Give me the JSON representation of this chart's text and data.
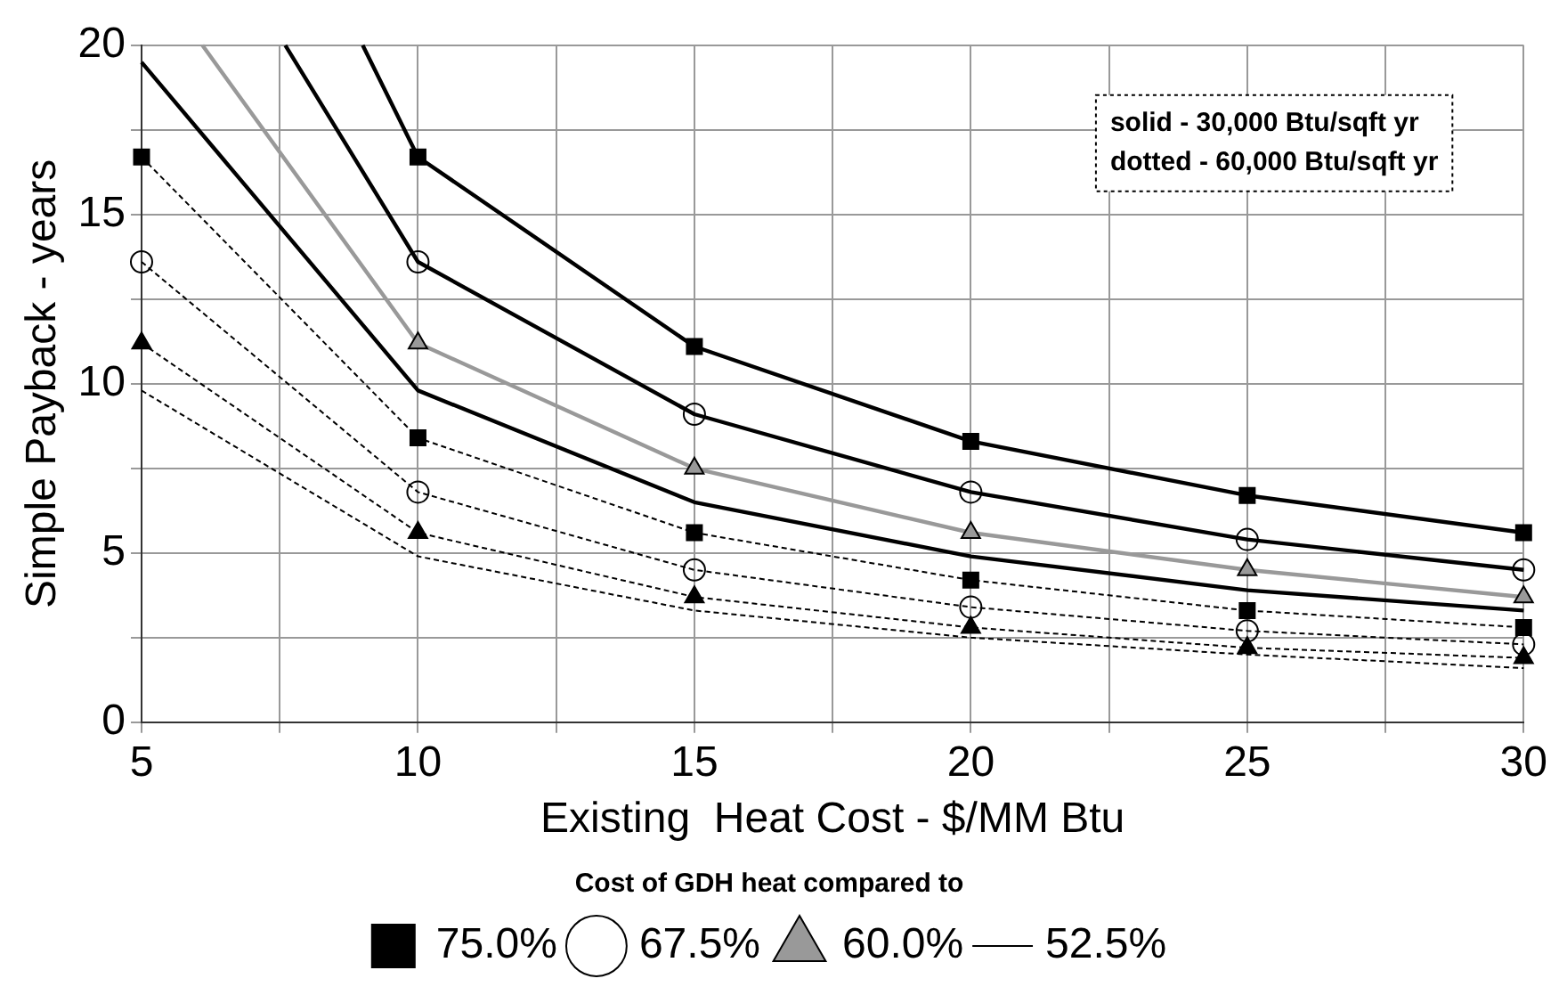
{
  "chart_data": {
    "type": "line",
    "xlabel": "Existing  Heat Cost - $/MM Btu",
    "ylabel": "Simple Payback - years",
    "legend_title": "Cost of GDH heat compared to",
    "annotations": [
      "solid - 30,000 Btu/sqft yr",
      "dotted - 60,000 Btu/sqft yr"
    ],
    "xlim": [
      5,
      30
    ],
    "xticks": [
      5,
      {
        "value": 7.5,
        "label": null
      },
      10,
      {
        "value": 12.5,
        "label": null
      },
      15,
      {
        "value": 17.5,
        "label": null
      },
      20,
      {
        "value": 22.5,
        "label": null
      },
      25,
      {
        "value": 27.5,
        "label": null
      },
      30
    ],
    "ylim": [
      0,
      20
    ],
    "yticks": [
      0,
      {
        "value": 2.5,
        "label": null
      },
      5,
      {
        "value": 7.5,
        "label": null
      },
      10,
      {
        "value": 12.5,
        "label": null
      },
      15,
      {
        "value": 17.5,
        "label": null
      },
      20
    ],
    "grid": true,
    "legend": "bottom",
    "series": [
      {
        "name": "75.0%",
        "color": "#000000",
        "marker": "square",
        "line_style": "solid",
        "x": [
          9.0,
          10,
          15,
          20,
          25,
          30
        ],
        "values": [
          20,
          16.7,
          11.1,
          8.3,
          6.7,
          5.6
        ]
      },
      {
        "name": "67.5%",
        "color": "#000000",
        "marker": "circle",
        "line_style": "solid",
        "x": [
          7.6,
          10,
          15,
          20,
          25,
          30
        ],
        "values": [
          20,
          13.6,
          9.1,
          6.8,
          5.4,
          4.5
        ]
      },
      {
        "name": "60.0%",
        "color": "#999999",
        "marker": "triangle",
        "line_style": "solid",
        "x": [
          6.1,
          10,
          15,
          20,
          25,
          30
        ],
        "values": [
          20,
          11.2,
          7.5,
          5.6,
          4.5,
          3.7
        ]
      },
      {
        "name": "52.5%",
        "color": "#000000",
        "marker": "none",
        "line_style": "solid",
        "x": [
          5,
          10,
          15,
          20,
          25,
          30
        ],
        "values": [
          19.5,
          9.8,
          6.5,
          4.9,
          3.9,
          3.3
        ]
      },
      {
        "color": "#000000",
        "marker": "square",
        "line_style": "dotted",
        "x": [
          5,
          10,
          15,
          20,
          25,
          30
        ],
        "values": [
          16.7,
          8.4,
          5.6,
          4.2,
          3.3,
          2.8
        ]
      },
      {
        "color": "#000000",
        "marker": "circle",
        "line_style": "dotted",
        "x": [
          5,
          10,
          15,
          20,
          25,
          30
        ],
        "values": [
          13.6,
          6.8,
          4.5,
          3.4,
          2.7,
          2.3
        ]
      },
      {
        "color": "#000000",
        "marker": "triangle",
        "line_style": "dotted",
        "x": [
          5,
          10,
          15,
          20,
          25,
          30
        ],
        "values": [
          11.2,
          5.6,
          3.7,
          2.8,
          2.2,
          1.9
        ]
      },
      {
        "color": "#000000",
        "marker": "none",
        "line_style": "dotted",
        "x": [
          5,
          10,
          15,
          20,
          25,
          30
        ],
        "values": [
          9.8,
          4.9,
          3.3,
          2.5,
          2.0,
          1.6
        ]
      }
    ]
  }
}
